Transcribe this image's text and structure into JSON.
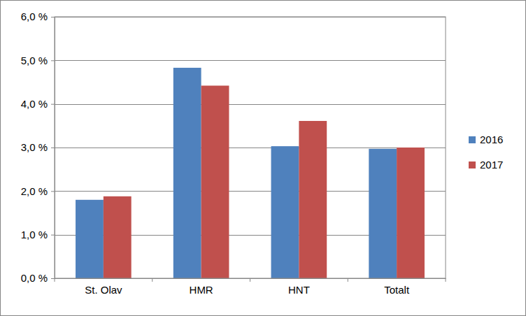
{
  "chart_data": {
    "type": "bar",
    "categories": [
      "St. Olav",
      "HMR",
      "HNT",
      "Totalt"
    ],
    "series": [
      {
        "name": "2016",
        "color": "#4f81bd",
        "values": [
          1.8,
          4.83,
          3.03,
          2.97
        ]
      },
      {
        "name": "2017",
        "color": "#c0504d",
        "values": [
          1.88,
          4.42,
          3.61,
          3.0
        ]
      }
    ],
    "ylim": [
      0,
      6
    ],
    "yticks": [
      {
        "value": 0,
        "label": "0,0 %"
      },
      {
        "value": 1,
        "label": "1,0 %"
      },
      {
        "value": 2,
        "label": "2,0 %"
      },
      {
        "value": 3,
        "label": "3,0 %"
      },
      {
        "value": 4,
        "label": "4,0 %"
      },
      {
        "value": 5,
        "label": "5,0 %"
      },
      {
        "value": 6,
        "label": "6,0 %"
      }
    ],
    "grid": true,
    "legend": "right"
  }
}
